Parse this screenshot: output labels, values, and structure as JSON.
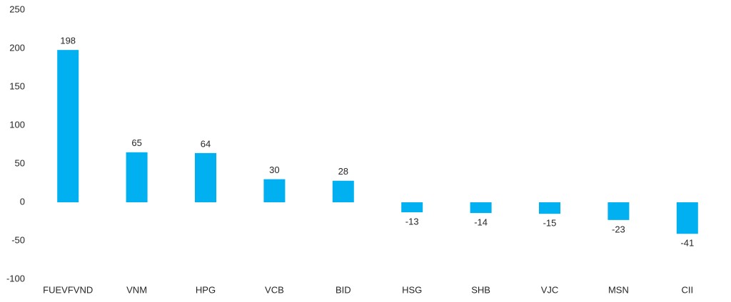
{
  "chart_data": {
    "type": "bar",
    "categories": [
      "FUEVFVND",
      "VNM",
      "HPG",
      "VCB",
      "BID",
      "HSG",
      "SHB",
      "VJC",
      "MSN",
      "CII"
    ],
    "values": [
      198,
      65,
      64,
      30,
      28,
      -13,
      -14,
      -15,
      -23,
      -41
    ],
    "color": "#00b0f0",
    "ylim": [
      -100,
      250
    ],
    "yticks": [
      -100,
      -50,
      0,
      50,
      100,
      150,
      200,
      250
    ],
    "grid": false
  }
}
